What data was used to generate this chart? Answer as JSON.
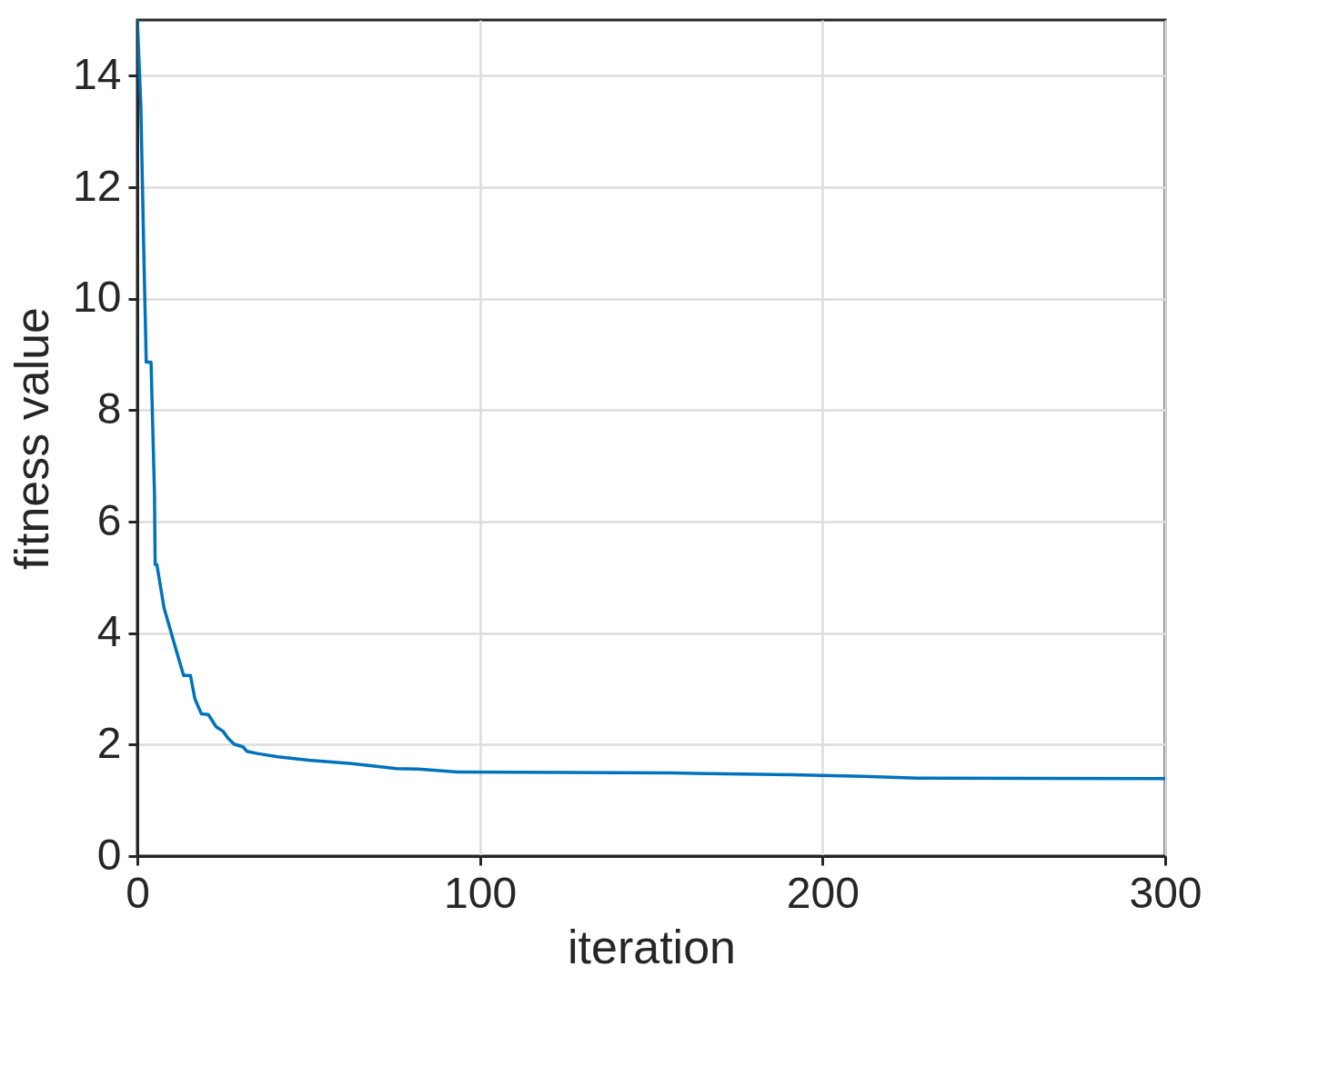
{
  "chart_data": {
    "type": "line",
    "xlabel": "iteration",
    "ylabel": "fitness value",
    "x": [
      0,
      1,
      2,
      2.6,
      4,
      5,
      5.2,
      5.7,
      7.8,
      11.4,
      13.5,
      15.5,
      16.8,
      18.7,
      20.7,
      23,
      25,
      26.4,
      28.2,
      30.8,
      32,
      35,
      41,
      50,
      62.7,
      75.6,
      82,
      93.5,
      156,
      190.7,
      211.7,
      227.7,
      300
    ],
    "series": [
      {
        "color": "#0072bd",
        "values": [
          15,
          13.5,
          10.5,
          8.86,
          8.86,
          6.5,
          5.23,
          5.23,
          4.45,
          3.68,
          3.24,
          3.24,
          2.82,
          2.55,
          2.54,
          2.32,
          2.24,
          2.12,
          2.01,
          1.96,
          1.88,
          1.84,
          1.78,
          1.72,
          1.66,
          1.57,
          1.56,
          1.51,
          1.49,
          1.46,
          1.43,
          1.4,
          1.39
        ]
      }
    ],
    "xlim": [
      0,
      300
    ],
    "xticks": [
      0,
      100,
      200,
      300
    ],
    "ylim": [
      0,
      15
    ],
    "yticks": [
      0,
      2,
      4,
      6,
      8,
      10,
      12,
      14
    ],
    "grid": true,
    "marker": "none",
    "line_style": "solid"
  }
}
